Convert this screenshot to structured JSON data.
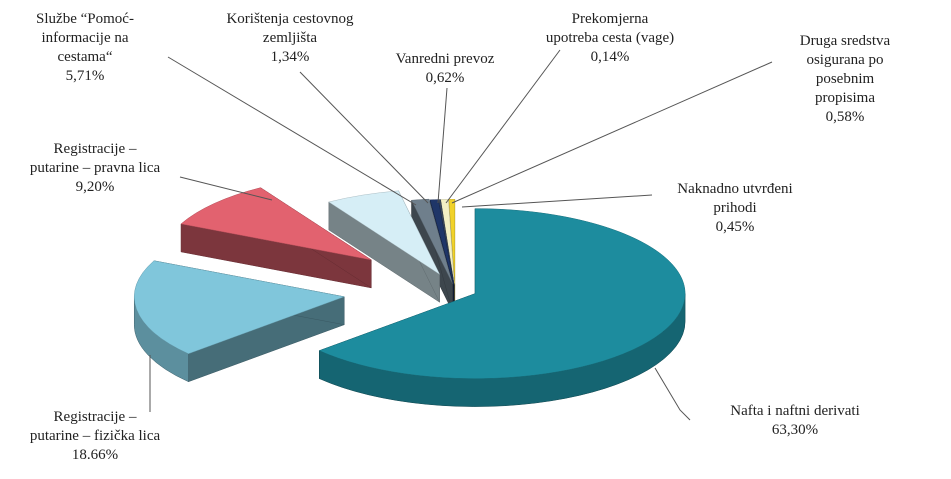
{
  "chart_data": {
    "type": "pie",
    "categories": [
      "Nafta i naftni derivati",
      "Registracije –\nputarine – fizička lica",
      "Registracije –\nputarine – pravna lica",
      "Službe “Pomoć-\ninformacije na\ncestama“",
      "Korištenja cestovnog\nzemljišta",
      "Vanredni prevoz",
      "Prekomjerna\nupotreba cesta (vage)",
      "Druga sredstva\nosigurana po posebnim\npropisima",
      "Naknadno utvrđeni\nprihodi"
    ],
    "values": [
      63.3,
      18.66,
      9.2,
      5.71,
      1.34,
      0.62,
      0.14,
      0.58,
      0.45
    ],
    "value_labels": [
      "63,30%",
      "18.66%",
      "9,20%",
      "5,71%",
      "1,34%",
      "0,62%",
      "0,14%",
      "0,58%",
      "0,45%"
    ],
    "colors": [
      "#1d8c9e",
      "#80c6db",
      "#e2626f",
      "#d6eef6",
      "#6f7f8c",
      "#1f3668",
      "#3c4a5e",
      "#f2efc4",
      "#f1d22a"
    ]
  }
}
